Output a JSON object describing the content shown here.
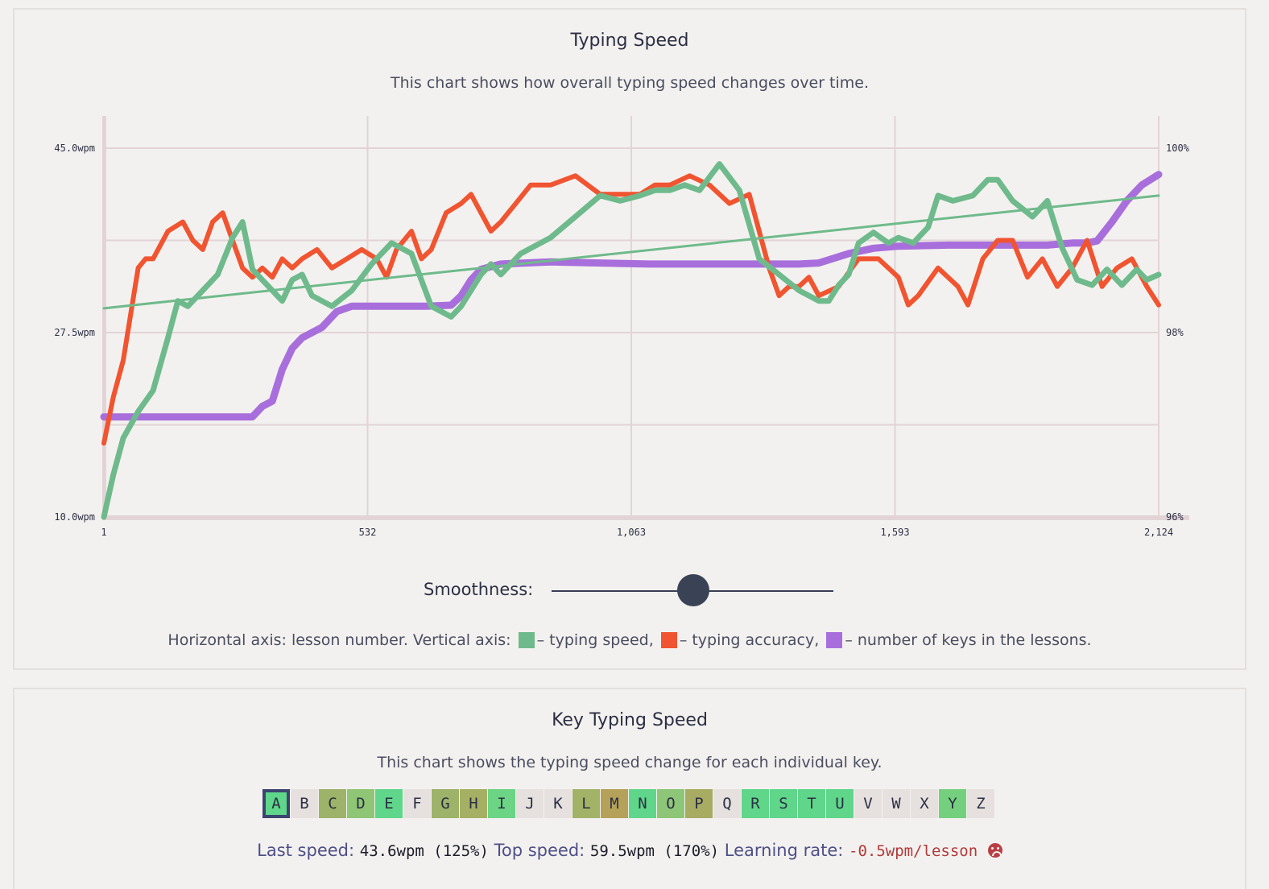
{
  "speed_panel": {
    "title": "Typing Speed",
    "description": "This chart shows how overall typing speed changes over time.",
    "smoothness_label": "Smoothness:",
    "smoothness_value": 0.5,
    "legend": {
      "prefix": "Horizontal axis: lesson number. Vertical axis:",
      "speed": "– typing speed,",
      "accuracy": "– typing accuracy,",
      "keys": "– number of keys in the lessons."
    },
    "colors": {
      "speed": "#6fba8c",
      "accuracy": "#f05430",
      "keys": "#a86fdc"
    }
  },
  "chart_data": {
    "type": "line",
    "x_ticks": [
      "1",
      "532",
      "1,063",
      "1,593",
      "2,124"
    ],
    "xlim": [
      1,
      2124
    ],
    "y_left_ticks": [
      "45.0wpm",
      "27.5wpm",
      "10.0wpm"
    ],
    "ylim_left": [
      10,
      45
    ],
    "y_right_ticks": [
      "100%",
      "98%",
      "96%"
    ],
    "ylim_right": [
      96,
      100
    ],
    "series": [
      {
        "key": "speed",
        "x": [
          1,
          20,
          40,
          70,
          100,
          130,
          150,
          170,
          200,
          230,
          260,
          280,
          300,
          320,
          340,
          360,
          380,
          400,
          420,
          460,
          500,
          540,
          580,
          620,
          660,
          700,
          720,
          740,
          760,
          780,
          800,
          820,
          840,
          860,
          900,
          950,
          1000,
          1040,
          1080,
          1110,
          1140,
          1170,
          1200,
          1240,
          1280,
          1320,
          1360,
          1400,
          1420,
          1440,
          1460,
          1480,
          1500,
          1520,
          1550,
          1580,
          1600,
          1630,
          1660,
          1680,
          1710,
          1750,
          1780,
          1800,
          1830,
          1870,
          1900,
          1930,
          1960,
          1990,
          2020,
          2050,
          2080,
          2100,
          2124
        ],
        "values": [
          10.0,
          14.0,
          17.5,
          20.0,
          22.0,
          27.0,
          30.5,
          30.0,
          31.5,
          33.0,
          36.5,
          38.0,
          33.5,
          32.5,
          31.5,
          30.5,
          32.5,
          33.0,
          31.0,
          30.0,
          31.5,
          34.0,
          36.0,
          35.0,
          30.0,
          29.0,
          30.0,
          31.5,
          33.0,
          34.0,
          33.0,
          34.0,
          35.0,
          35.5,
          36.5,
          38.5,
          40.5,
          40.0,
          40.5,
          41.0,
          41.0,
          41.5,
          41.0,
          43.5,
          41.0,
          34.5,
          33.0,
          31.5,
          31.0,
          30.5,
          30.5,
          32.0,
          33.0,
          36.0,
          37.0,
          36.0,
          36.5,
          36.0,
          37.5,
          40.5,
          40.0,
          40.5,
          42.0,
          42.0,
          40.0,
          38.5,
          40.0,
          35.5,
          32.5,
          32.0,
          33.5,
          32.0,
          33.5,
          32.5,
          33.0
        ]
      },
      {
        "key": "accuracy",
        "x": [
          1,
          20,
          40,
          55,
          70,
          85,
          100,
          130,
          160,
          180,
          200,
          220,
          240,
          260,
          280,
          300,
          320,
          340,
          360,
          380,
          400,
          430,
          460,
          490,
          520,
          550,
          570,
          590,
          620,
          640,
          660,
          690,
          720,
          740,
          760,
          780,
          800,
          830,
          860,
          900,
          950,
          1000,
          1040,
          1080,
          1110,
          1140,
          1180,
          1220,
          1260,
          1300,
          1340,
          1360,
          1380,
          1400,
          1420,
          1440,
          1480,
          1520,
          1560,
          1600,
          1620,
          1640,
          1680,
          1720,
          1740,
          1770,
          1800,
          1830,
          1860,
          1890,
          1920,
          1950,
          1980,
          2010,
          2040,
          2070,
          2100,
          2124
        ],
        "values": [
          96.8,
          97.3,
          97.7,
          98.2,
          98.7,
          98.8,
          98.8,
          99.1,
          99.2,
          99.0,
          98.9,
          99.2,
          99.3,
          99.0,
          98.7,
          98.6,
          98.7,
          98.6,
          98.8,
          98.7,
          98.8,
          98.9,
          98.7,
          98.8,
          98.9,
          98.8,
          98.6,
          98.9,
          99.1,
          98.8,
          98.9,
          99.3,
          99.4,
          99.5,
          99.3,
          99.1,
          99.2,
          99.4,
          99.6,
          99.6,
          99.7,
          99.5,
          99.5,
          99.5,
          99.6,
          99.6,
          99.7,
          99.6,
          99.4,
          99.5,
          98.7,
          98.4,
          98.5,
          98.5,
          98.6,
          98.4,
          98.5,
          98.8,
          98.8,
          98.6,
          98.3,
          98.4,
          98.7,
          98.5,
          98.3,
          98.8,
          99.0,
          99.0,
          98.6,
          98.8,
          98.5,
          98.7,
          99.0,
          98.5,
          98.7,
          98.8,
          98.5,
          98.3
        ]
      },
      {
        "key": "keys",
        "x": [
          1,
          100,
          200,
          280,
          300,
          320,
          340,
          360,
          380,
          400,
          420,
          440,
          470,
          500,
          550,
          600,
          650,
          700,
          720,
          740,
          760,
          800,
          900,
          1000,
          1100,
          1200,
          1300,
          1400,
          1440,
          1500,
          1550,
          1600,
          1700,
          1800,
          1900,
          1950,
          1980,
          2000,
          2030,
          2060,
          2090,
          2124
        ],
        "values": [
          19.5,
          19.5,
          19.5,
          19.5,
          19.5,
          20.5,
          21.0,
          24.0,
          26.0,
          27.0,
          27.5,
          28.0,
          29.5,
          30.0,
          30.0,
          30.0,
          30.0,
          30.1,
          31.0,
          32.5,
          33.5,
          34.0,
          34.2,
          34.1,
          34.0,
          34.0,
          34.0,
          34.0,
          34.1,
          35.0,
          35.5,
          35.7,
          35.8,
          35.8,
          35.8,
          36.0,
          36.0,
          36.2,
          38.0,
          40.0,
          41.5,
          42.5
        ]
      },
      {
        "key": "trend",
        "x": [
          1,
          2124
        ],
        "values": [
          29.8,
          40.5
        ]
      }
    ]
  },
  "key_panel": {
    "title": "Key Typing Speed",
    "description": "This chart shows the typing speed change for each individual key.",
    "keys": [
      {
        "k": "A",
        "c": "#5fd68a",
        "sel": true
      },
      {
        "k": "B",
        "c": "#e6e1df"
      },
      {
        "k": "C",
        "c": "#9db36a"
      },
      {
        "k": "D",
        "c": "#8fc675"
      },
      {
        "k": "E",
        "c": "#5fd68a"
      },
      {
        "k": "F",
        "c": "#e6e1df"
      },
      {
        "k": "G",
        "c": "#9db36a"
      },
      {
        "k": "H",
        "c": "#a6b064"
      },
      {
        "k": "I",
        "c": "#6bd485"
      },
      {
        "k": "J",
        "c": "#e6e1df"
      },
      {
        "k": "K",
        "c": "#e6e1df"
      },
      {
        "k": "L",
        "c": "#a2b368"
      },
      {
        "k": "M",
        "c": "#b5a159"
      },
      {
        "k": "N",
        "c": "#5fd68a"
      },
      {
        "k": "O",
        "c": "#8ec678"
      },
      {
        "k": "P",
        "c": "#a8ab62"
      },
      {
        "k": "Q",
        "c": "#e6e1df"
      },
      {
        "k": "R",
        "c": "#5fd68a"
      },
      {
        "k": "S",
        "c": "#5fd68a"
      },
      {
        "k": "T",
        "c": "#5fd68a"
      },
      {
        "k": "U",
        "c": "#5fd68a"
      },
      {
        "k": "V",
        "c": "#e6e1df"
      },
      {
        "k": "W",
        "c": "#e6e1df"
      },
      {
        "k": "X",
        "c": "#e6e1df"
      },
      {
        "k": "Y",
        "c": "#74d07e"
      },
      {
        "k": "Z",
        "c": "#e6e1df"
      }
    ],
    "stats": {
      "last_label": "Last speed:",
      "last_value": "43.6wpm (125%)",
      "top_label": "Top speed:",
      "top_value": "59.5wpm (170%)",
      "rate_label": "Learning rate:",
      "rate_value": "-0.5wpm/lesson",
      "mood_icon": "frown-icon"
    }
  }
}
